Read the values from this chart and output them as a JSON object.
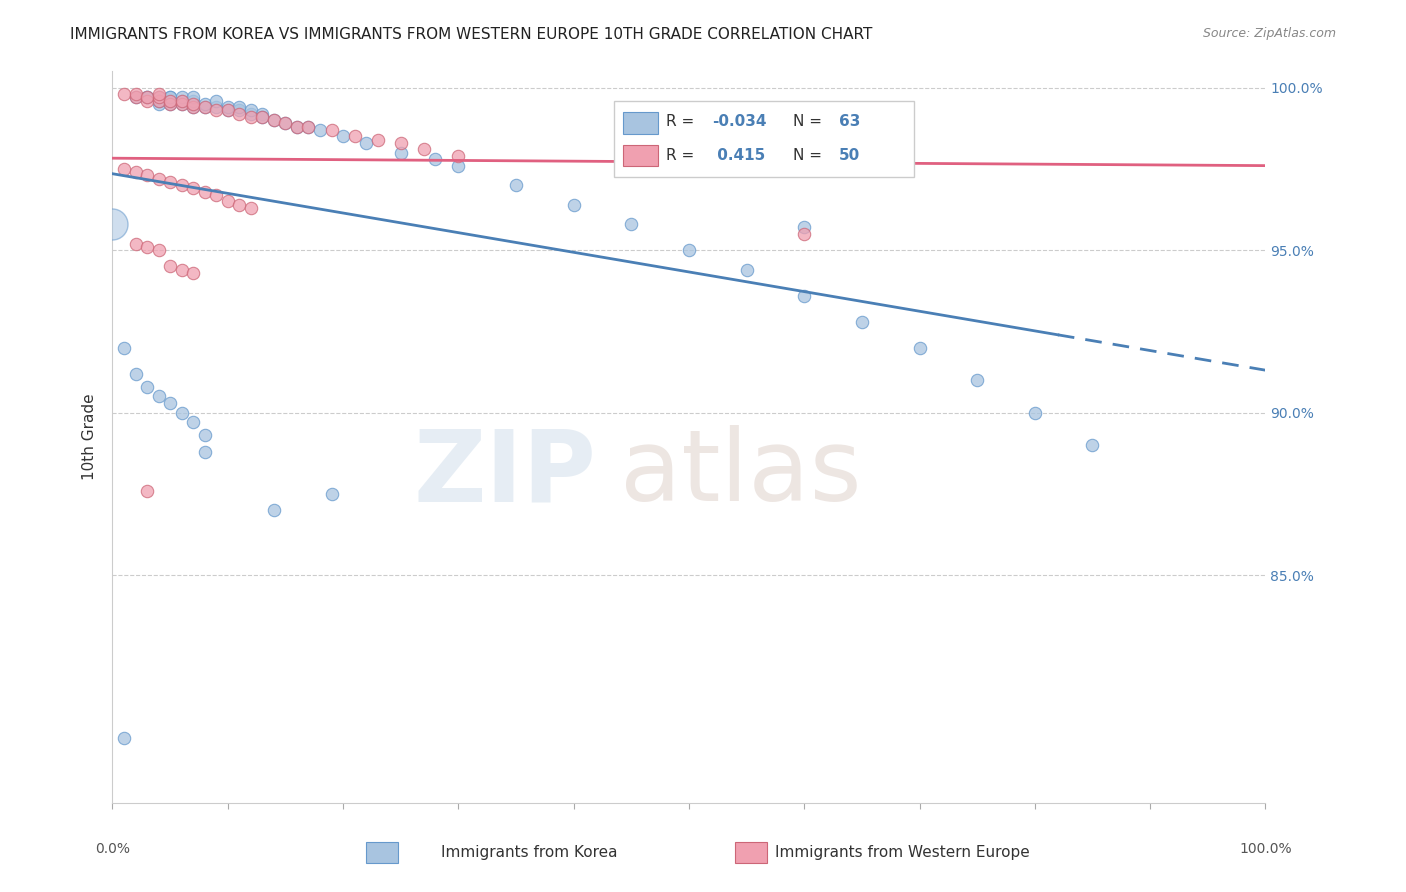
{
  "title": "IMMIGRANTS FROM KOREA VS IMMIGRANTS FROM WESTERN EUROPE 10TH GRADE CORRELATION CHART",
  "source": "Source: ZipAtlas.com",
  "ylabel": "10th Grade",
  "xlim": [
    0.0,
    1.0
  ],
  "ylim": [
    0.78,
    1.005
  ],
  "R_blue": -0.034,
  "N_blue": 63,
  "R_pink": 0.415,
  "N_pink": 50,
  "color_blue": "#a8c4e0",
  "color_pink": "#f0a0b0",
  "color_blue_line": "#4a7fb5",
  "color_pink_line": "#e06080",
  "blue_scatter_x": [
    0.02,
    0.03,
    0.03,
    0.04,
    0.04,
    0.04,
    0.05,
    0.05,
    0.05,
    0.05,
    0.06,
    0.06,
    0.06,
    0.07,
    0.07,
    0.07,
    0.07,
    0.08,
    0.08,
    0.09,
    0.09,
    0.1,
    0.1,
    0.11,
    0.11,
    0.12,
    0.12,
    0.13,
    0.13,
    0.14,
    0.15,
    0.16,
    0.17,
    0.18,
    0.2,
    0.22,
    0.25,
    0.28,
    0.3,
    0.35,
    0.4,
    0.45,
    0.5,
    0.55,
    0.6,
    0.65,
    0.7,
    0.75,
    0.8,
    0.85,
    0.01,
    0.02,
    0.03,
    0.04,
    0.05,
    0.06,
    0.07,
    0.08,
    0.6,
    0.08,
    0.01,
    0.14,
    0.19
  ],
  "blue_scatter_y": [
    0.997,
    0.997,
    0.997,
    0.995,
    0.997,
    0.996,
    0.995,
    0.996,
    0.997,
    0.997,
    0.995,
    0.996,
    0.997,
    0.994,
    0.995,
    0.996,
    0.997,
    0.994,
    0.995,
    0.994,
    0.996,
    0.993,
    0.994,
    0.993,
    0.994,
    0.992,
    0.993,
    0.992,
    0.991,
    0.99,
    0.989,
    0.988,
    0.988,
    0.987,
    0.985,
    0.983,
    0.98,
    0.978,
    0.976,
    0.97,
    0.964,
    0.958,
    0.95,
    0.944,
    0.936,
    0.928,
    0.92,
    0.91,
    0.9,
    0.89,
    0.92,
    0.912,
    0.908,
    0.905,
    0.903,
    0.9,
    0.897,
    0.893,
    0.957,
    0.888,
    0.8,
    0.87,
    0.875
  ],
  "pink_scatter_x": [
    0.01,
    0.02,
    0.02,
    0.03,
    0.03,
    0.04,
    0.04,
    0.04,
    0.05,
    0.05,
    0.06,
    0.06,
    0.07,
    0.07,
    0.08,
    0.09,
    0.1,
    0.11,
    0.12,
    0.13,
    0.14,
    0.15,
    0.16,
    0.17,
    0.19,
    0.21,
    0.23,
    0.25,
    0.27,
    0.3,
    0.01,
    0.02,
    0.03,
    0.04,
    0.05,
    0.06,
    0.07,
    0.08,
    0.09,
    0.1,
    0.11,
    0.12,
    0.02,
    0.03,
    0.04,
    0.6,
    0.03,
    0.05,
    0.06,
    0.07
  ],
  "pink_scatter_y": [
    0.998,
    0.997,
    0.998,
    0.996,
    0.997,
    0.996,
    0.997,
    0.998,
    0.995,
    0.996,
    0.995,
    0.996,
    0.994,
    0.995,
    0.994,
    0.993,
    0.993,
    0.992,
    0.991,
    0.991,
    0.99,
    0.989,
    0.988,
    0.988,
    0.987,
    0.985,
    0.984,
    0.983,
    0.981,
    0.979,
    0.975,
    0.974,
    0.973,
    0.972,
    0.971,
    0.97,
    0.969,
    0.968,
    0.967,
    0.965,
    0.964,
    0.963,
    0.952,
    0.951,
    0.95,
    0.955,
    0.876,
    0.945,
    0.944,
    0.943
  ]
}
